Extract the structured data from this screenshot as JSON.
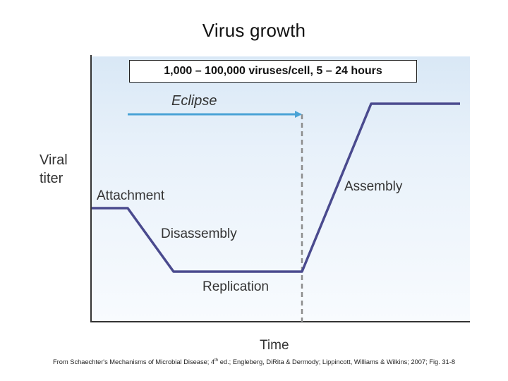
{
  "title": "Virus growth",
  "rate_box": "1,000 – 100,000 viruses/cell, 5 – 24 hours",
  "labels": {
    "eclipse": "Eclipse",
    "y_axis_line1": "Viral",
    "y_axis_line2": "titer",
    "x_axis": "Time",
    "attachment": "Attachment",
    "disassembly": "Disassembly",
    "replication": "Replication",
    "assembly": "Assembly"
  },
  "citation": {
    "before_sup": "From Schaechter's Mechanisms of Microbial Disease; 4",
    "sup": "th",
    "after_sup": " ed.; Engleberg, DiRita & Dermody; Lippincott, Williams & Wilkins; 2007; Fig. 31-8"
  },
  "colors": {
    "curve": "#4a4a8e",
    "eclipse_arrow": "#4aa3d6",
    "axis": "#333333",
    "plot_bg_top": "#d9e8f6",
    "plot_bg_bottom": "#f7fafe"
  }
}
